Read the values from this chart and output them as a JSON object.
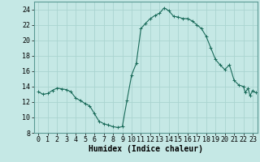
{
  "xlabel": "Humidex (Indice chaleur)",
  "background_color": "#c5e8e5",
  "line_color": "#1a6b5a",
  "marker_color": "#1a6b5a",
  "grid_color": "#aad4d0",
  "xlim": [
    -0.5,
    23.5
  ],
  "ylim": [
    8,
    25
  ],
  "xticks": [
    0,
    1,
    2,
    3,
    4,
    5,
    6,
    7,
    8,
    9,
    10,
    11,
    12,
    13,
    14,
    15,
    16,
    17,
    18,
    19,
    20,
    21,
    22,
    23
  ],
  "yticks": [
    8,
    10,
    12,
    14,
    16,
    18,
    20,
    22,
    24
  ],
  "x": [
    0,
    0.5,
    1,
    1.5,
    2,
    2.5,
    3,
    3.5,
    4,
    4.5,
    5,
    5.5,
    6,
    6.5,
    7,
    7.5,
    8,
    8.5,
    9,
    9.5,
    10,
    10.5,
    11,
    11.5,
    12,
    12.5,
    13,
    13.5,
    14,
    14.5,
    15,
    15.5,
    16,
    16.5,
    17,
    17.5,
    18,
    18.5,
    19,
    19.5,
    20,
    20.5,
    21,
    21.5,
    22,
    22.2,
    22.5,
    22.7,
    23,
    23.3
  ],
  "y": [
    13.3,
    13.0,
    13.1,
    13.5,
    13.8,
    13.7,
    13.6,
    13.3,
    12.5,
    12.2,
    11.8,
    11.5,
    10.5,
    9.5,
    9.2,
    9.0,
    8.8,
    8.7,
    8.8,
    12.2,
    15.5,
    17.0,
    21.5,
    22.2,
    22.8,
    23.2,
    23.5,
    24.2,
    23.8,
    23.1,
    23.0,
    22.8,
    22.8,
    22.5,
    22.0,
    21.5,
    20.5,
    19.0,
    17.5,
    16.8,
    16.2,
    16.8,
    14.8,
    14.2,
    14.0,
    13.2,
    13.8,
    12.8,
    13.5,
    13.2
  ],
  "xlabel_fontsize": 7,
  "tick_fontsize": 6
}
